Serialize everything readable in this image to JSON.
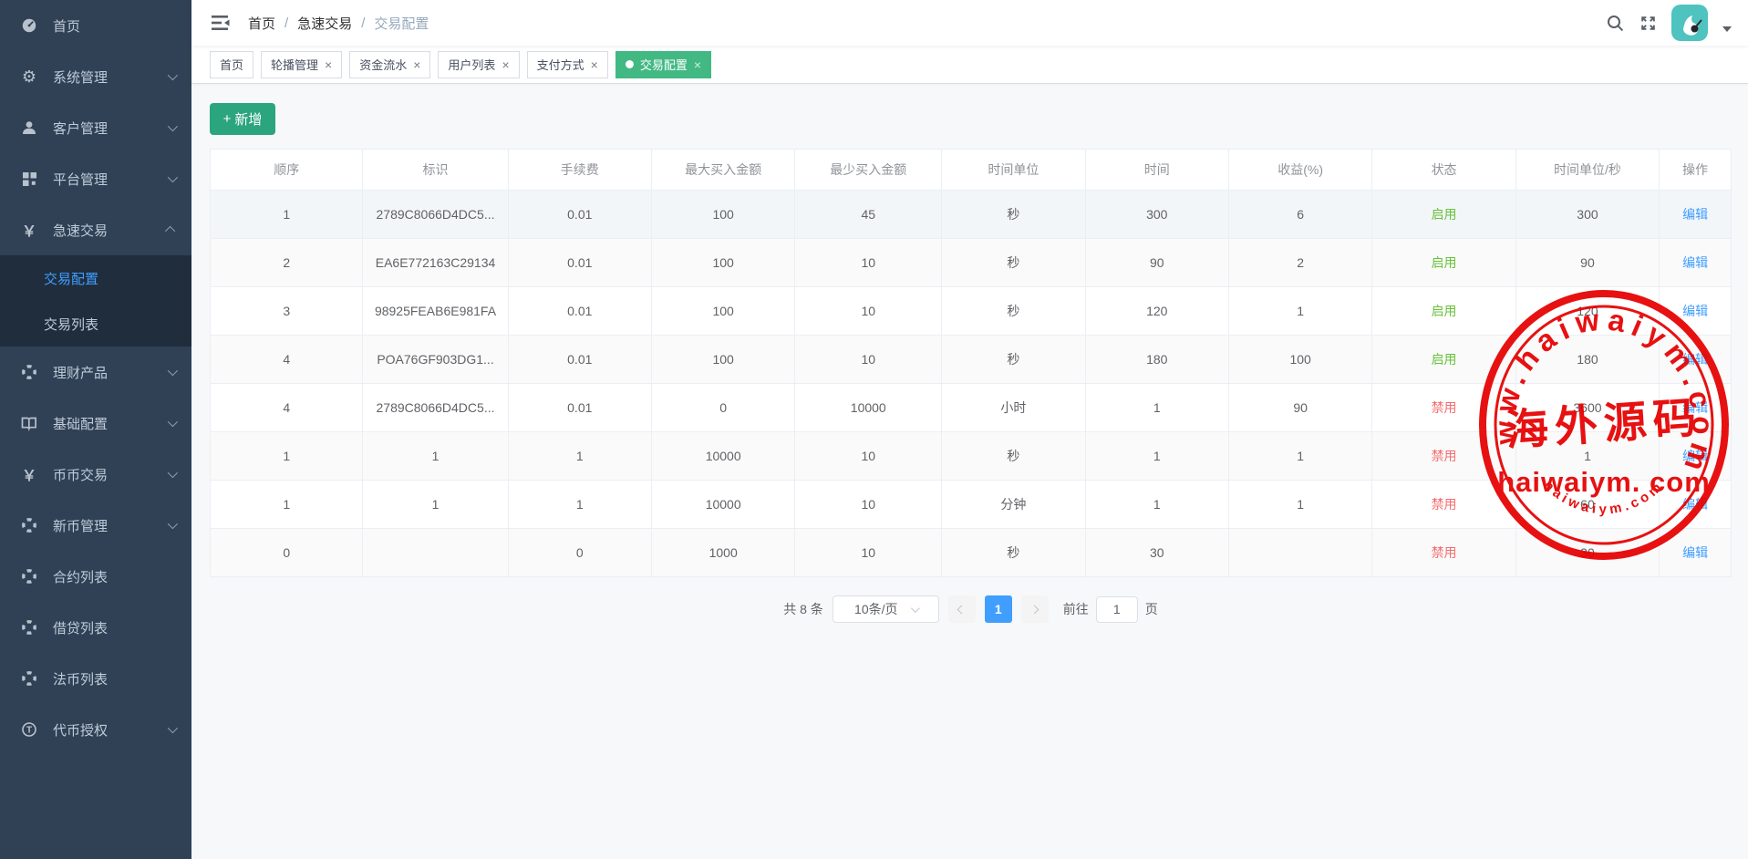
{
  "colors": {
    "accent": "#409EFF",
    "tag_active": "#42B983",
    "button_bg": "#2BA57E",
    "status_on": "#67C23A",
    "status_off": "#F56C6C",
    "stamp": "#E60000",
    "sidebar_bg": "#304156",
    "submenu_bg": "#1F2D3D"
  },
  "sidebar": {
    "items": [
      {
        "label": "首页",
        "icon": "dashboard-icon",
        "chevron": "none",
        "expanded": false
      },
      {
        "label": "系统管理",
        "icon": "gear-icon",
        "chevron": "down",
        "expanded": false
      },
      {
        "label": "客户管理",
        "icon": "user-icon",
        "chevron": "down",
        "expanded": false
      },
      {
        "label": "平台管理",
        "icon": "grid-icon",
        "chevron": "down",
        "expanded": false
      },
      {
        "label": "急速交易",
        "icon": "yen-icon",
        "chevron": "up",
        "expanded": true,
        "children": [
          {
            "label": "交易配置",
            "active": true
          },
          {
            "label": "交易列表",
            "active": false
          }
        ]
      },
      {
        "label": "理财产品",
        "icon": "lifebuoy-icon",
        "chevron": "down",
        "expanded": false
      },
      {
        "label": "基础配置",
        "icon": "book-icon",
        "chevron": "down",
        "expanded": false
      },
      {
        "label": "币币交易",
        "icon": "yen-icon",
        "chevron": "down",
        "expanded": false
      },
      {
        "label": "新币管理",
        "icon": "lifebuoy-icon",
        "chevron": "down",
        "expanded": false
      },
      {
        "label": "合约列表",
        "icon": "lifebuoy-icon",
        "chevron": "none",
        "expanded": false
      },
      {
        "label": "借贷列表",
        "icon": "lifebuoy-icon",
        "chevron": "none",
        "expanded": false
      },
      {
        "label": "法币列表",
        "icon": "lifebuoy-icon",
        "chevron": "none",
        "expanded": false
      },
      {
        "label": "代币授权",
        "icon": "token-icon",
        "chevron": "down",
        "expanded": false
      }
    ]
  },
  "breadcrumb": {
    "items": [
      "首页",
      "急速交易",
      "交易配置"
    ],
    "separator": "/"
  },
  "tabs": [
    {
      "label": "首页",
      "closable": false,
      "active": false
    },
    {
      "label": "轮播管理",
      "closable": true,
      "active": false
    },
    {
      "label": "资金流水",
      "closable": true,
      "active": false
    },
    {
      "label": "用户列表",
      "closable": true,
      "active": false
    },
    {
      "label": "支付方式",
      "closable": true,
      "active": false
    },
    {
      "label": "交易配置",
      "closable": true,
      "active": true
    }
  ],
  "toolbar": {
    "add_icon": "+",
    "add_label": "新增"
  },
  "table": {
    "columns": [
      "顺序",
      "标识",
      "手续费",
      "最大买入金额",
      "最少买入金额",
      "时间单位",
      "时间",
      "收益(%)",
      "状态",
      "时间单位/秒",
      "操作"
    ],
    "action_label": "编辑",
    "rows": [
      {
        "values": [
          "1",
          "2789C8066D4DC5...",
          "0.01",
          "100",
          "45",
          "秒",
          "300",
          "6",
          "启用",
          "300"
        ],
        "enabled": true
      },
      {
        "values": [
          "2",
          "EA6E772163C29134",
          "0.01",
          "100",
          "10",
          "秒",
          "90",
          "2",
          "启用",
          "90"
        ],
        "enabled": true
      },
      {
        "values": [
          "3",
          "98925FEAB6E981FA",
          "0.01",
          "100",
          "10",
          "秒",
          "120",
          "1",
          "启用",
          "120"
        ],
        "enabled": true
      },
      {
        "values": [
          "4",
          "POA76GF903DG1...",
          "0.01",
          "100",
          "10",
          "秒",
          "180",
          "100",
          "启用",
          "180"
        ],
        "enabled": true
      },
      {
        "values": [
          "4",
          "2789C8066D4DC5...",
          "0.01",
          "0",
          "10000",
          "小时",
          "1",
          "90",
          "禁用",
          "3600"
        ],
        "enabled": false
      },
      {
        "values": [
          "1",
          "1",
          "1",
          "10000",
          "10",
          "秒",
          "1",
          "1",
          "禁用",
          "1"
        ],
        "enabled": false
      },
      {
        "values": [
          "1",
          "1",
          "1",
          "10000",
          "10",
          "分钟",
          "1",
          "1",
          "禁用",
          "60"
        ],
        "enabled": false
      },
      {
        "values": [
          "0",
          "",
          "0",
          "1000",
          "10",
          "秒",
          "30",
          "",
          "禁用",
          "30"
        ],
        "enabled": false
      }
    ]
  },
  "pagination": {
    "total": "共 8 条",
    "page_size": "10条/页",
    "current": "1",
    "goto_label": "前往",
    "goto_value": "1",
    "unit": "页"
  },
  "watermark": {
    "ring_text": "www.haiwaiym.com",
    "center_cn": "海外源码",
    "center_en": "haiwaiym. com",
    "bottom_text": "haiwaiym.com"
  }
}
